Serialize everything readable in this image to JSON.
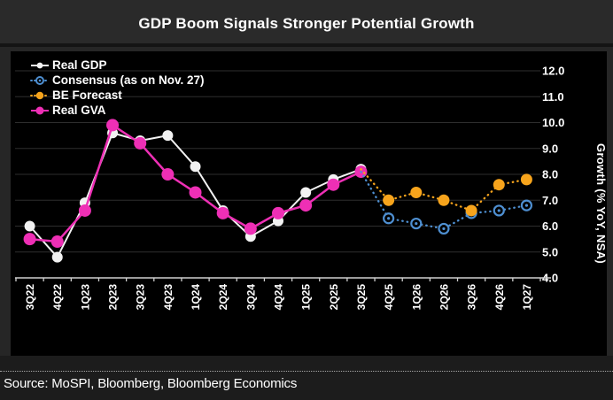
{
  "title": "GDP Boom Signals Stronger Potential Growth",
  "source": "Source: MoSPI, Bloomberg, Bloomberg Economics",
  "colors": {
    "background": "#262626",
    "panel": "#000000",
    "grid": "#2e2e2e",
    "axis": "#d0d0d0",
    "text": "#ffffff",
    "gdp": "#f2f2f2",
    "gva": "#ee2fb5",
    "consensus": "#4e8fd1",
    "be_forecast": "#f7a41c"
  },
  "chart_data": {
    "type": "line",
    "title": "GDP Boom Signals Stronger Potential Growth",
    "xlabel": "",
    "ylabel": "Growth (% YoY, NSA)",
    "ylim": [
      4.0,
      12.0
    ],
    "y_ticks": [
      12.0,
      11.0,
      10.0,
      9.0,
      8.0,
      7.0,
      6.0,
      5.0,
      4.0
    ],
    "grid": "horizontal",
    "legend_position": "top-left",
    "categories": [
      "3Q22",
      "4Q22",
      "1Q23",
      "2Q23",
      "3Q23",
      "4Q23",
      "1Q24",
      "2Q24",
      "3Q24",
      "4Q24",
      "1Q25",
      "2Q25",
      "3Q25",
      "4Q25",
      "1Q26",
      "2Q26",
      "3Q26",
      "4Q26",
      "1Q27"
    ],
    "series": [
      {
        "name": "Real GDP",
        "color_key": "gdp",
        "style": "solid",
        "marker": "filled-dot",
        "marker_radius": 6,
        "line_width": 2,
        "values": [
          6.0,
          4.8,
          6.9,
          9.6,
          9.3,
          9.5,
          8.3,
          6.6,
          5.6,
          6.2,
          7.3,
          7.8,
          8.2,
          null,
          null,
          null,
          null,
          null,
          null
        ]
      },
      {
        "name": "Real GVA",
        "color_key": "gva",
        "style": "solid",
        "marker": "filled-dot",
        "marker_radius": 7,
        "line_width": 2.5,
        "values": [
          5.5,
          5.4,
          6.6,
          9.9,
          9.2,
          8.0,
          7.3,
          6.5,
          5.9,
          6.5,
          6.8,
          7.6,
          8.1,
          null,
          null,
          null,
          null,
          null,
          null
        ]
      },
      {
        "name": "Consensus (as on Nov. 27)",
        "color_key": "consensus",
        "style": "dotted",
        "marker": "open-dot",
        "marker_radius": 5.5,
        "line_width": 2.3,
        "connect_from": {
          "index": 12,
          "value": 8.1
        },
        "values": [
          null,
          null,
          null,
          null,
          null,
          null,
          null,
          null,
          null,
          null,
          null,
          null,
          null,
          6.3,
          6.1,
          5.9,
          6.5,
          6.6,
          6.8
        ]
      },
      {
        "name": "BE Forecast",
        "color_key": "be_forecast",
        "style": "dotted",
        "marker": "filled-dot",
        "marker_radius": 6.5,
        "line_width": 2.3,
        "connect_from": {
          "index": 12,
          "value": 8.2
        },
        "values": [
          null,
          null,
          null,
          null,
          null,
          null,
          null,
          null,
          null,
          null,
          null,
          null,
          null,
          7.0,
          7.3,
          7.0,
          6.6,
          7.6,
          7.8
        ]
      }
    ]
  }
}
